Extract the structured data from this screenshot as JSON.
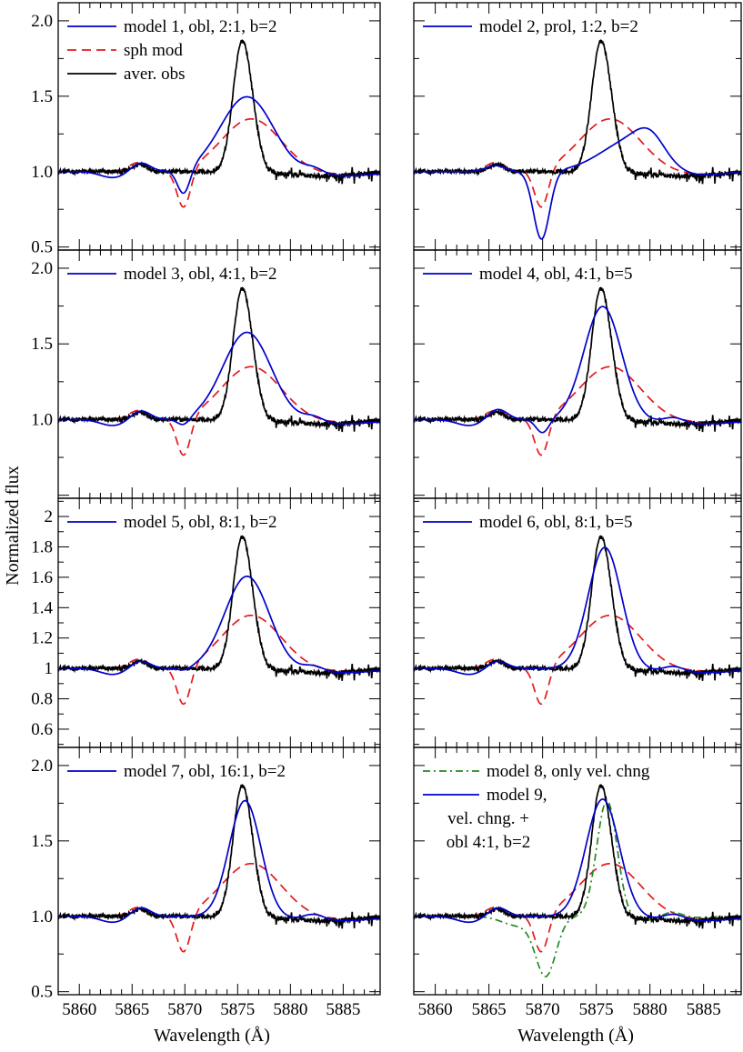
{
  "figure": {
    "ylabel": "Normalized flux",
    "xlabel": "Wavelength (Å)"
  },
  "chart_data": [
    {
      "type": "line",
      "panel": "1",
      "series": [
        {
          "key": "model",
          "name": "model 1, obl, 2:1, b=2",
          "color": "#0000cc",
          "dash": "solid",
          "peak": 1.5,
          "peak_at": 5875.9,
          "peak_width": 2.5,
          "absorption_depth": 0.17,
          "absorption_at": 5869.9,
          "hump": 0.06
        },
        {
          "key": "sph",
          "name": "sph mod",
          "color": "#e41a1c",
          "dash": "dashed"
        },
        {
          "key": "obs",
          "name": "aver. obs",
          "color": "#000000",
          "dash": "solid"
        }
      ],
      "xlim": [
        5858,
        5888.5
      ],
      "ylim": [
        0.48,
        2.12
      ],
      "yticks": [
        0.5,
        1.0,
        1.5,
        2.0
      ],
      "ytick_labels": [
        "0.5",
        "1.0",
        "1.5",
        "2.0"
      ],
      "xticks": [
        5860,
        5865,
        5870,
        5875,
        5880,
        5885
      ],
      "xtick_labels": []
    },
    {
      "type": "line",
      "panel": "2",
      "series": [
        {
          "key": "model",
          "name": "model 2, prol, 1:2, b=2",
          "color": "#0000cc",
          "dash": "solid",
          "profile": "prolate"
        },
        {
          "key": "sph",
          "name": "",
          "color": "#e41a1c",
          "dash": "dashed"
        },
        {
          "key": "obs",
          "name": "",
          "color": "#000000",
          "dash": "solid"
        }
      ],
      "xlim": [
        5858,
        5888.5
      ],
      "ylim": [
        0.48,
        2.12
      ],
      "yticks": [
        0.5,
        1.0,
        1.5,
        2.0
      ],
      "ytick_labels": [],
      "xticks": [
        5860,
        5865,
        5870,
        5875,
        5880,
        5885
      ],
      "xtick_labels": []
    },
    {
      "type": "line",
      "panel": "3",
      "series": [
        {
          "key": "model",
          "name": "model 3, obl, 4:1, b=2",
          "color": "#0000cc",
          "dash": "solid",
          "peak": 1.58,
          "peak_at": 5875.9,
          "peak_width": 2.3,
          "absorption_depth": 0.05,
          "absorption_at": 5869.9,
          "hump": 0.06
        },
        {
          "key": "sph",
          "name": "",
          "color": "#e41a1c",
          "dash": "dashed"
        },
        {
          "key": "obs",
          "name": "",
          "color": "#000000",
          "dash": "solid"
        }
      ],
      "xlim": [
        5858,
        5888.5
      ],
      "ylim": [
        0.48,
        2.12
      ],
      "yticks": [
        0.5,
        1.0,
        1.5,
        2.0
      ],
      "ytick_labels": [
        "",
        "1.0",
        "1.5",
        "2.0"
      ],
      "xticks": [
        5860,
        5865,
        5870,
        5875,
        5880,
        5885
      ],
      "xtick_labels": []
    },
    {
      "type": "line",
      "panel": "4",
      "series": [
        {
          "key": "model",
          "name": "model 4, obl, 4:1, b=5",
          "color": "#0000cc",
          "dash": "solid",
          "peak": 1.75,
          "peak_at": 5875.6,
          "peak_width": 1.75,
          "absorption_depth": 0.09,
          "absorption_at": 5870.0,
          "hump": 0.07
        },
        {
          "key": "sph",
          "name": "",
          "color": "#e41a1c",
          "dash": "dashed"
        },
        {
          "key": "obs",
          "name": "",
          "color": "#000000",
          "dash": "solid"
        }
      ],
      "xlim": [
        5858,
        5888.5
      ],
      "ylim": [
        0.48,
        2.12
      ],
      "yticks": [
        0.5,
        1.0,
        1.5,
        2.0
      ],
      "ytick_labels": [],
      "xticks": [
        5860,
        5865,
        5870,
        5875,
        5880,
        5885
      ],
      "xtick_labels": []
    },
    {
      "type": "line",
      "panel": "5",
      "series": [
        {
          "key": "model",
          "name": "model 5, obl, 8:1, b=2",
          "color": "#0000cc",
          "dash": "solid",
          "peak": 1.61,
          "peak_at": 5875.9,
          "peak_width": 2.1,
          "absorption_depth": 0.02,
          "absorption_at": 5870.0,
          "hump": 0.05
        },
        {
          "key": "sph",
          "name": "",
          "color": "#e41a1c",
          "dash": "dashed"
        },
        {
          "key": "obs",
          "name": "",
          "color": "#000000",
          "dash": "solid"
        }
      ],
      "xlim": [
        5858,
        5888.5
      ],
      "ylim": [
        0.48,
        2.12
      ],
      "yticks": [
        0.6,
        0.8,
        1.0,
        1.2,
        1.4,
        1.6,
        1.8,
        2.0
      ],
      "ytick_labels": [
        "0.6",
        "0.8",
        "1",
        "1.2",
        "1.4",
        "1.6",
        "1.8",
        "2"
      ],
      "xticks": [
        5860,
        5865,
        5870,
        5875,
        5880,
        5885
      ],
      "xtick_labels": []
    },
    {
      "type": "line",
      "panel": "6",
      "series": [
        {
          "key": "model",
          "name": "model 6, obl, 8:1, b=5",
          "color": "#0000cc",
          "dash": "solid",
          "peak": 1.8,
          "peak_at": 5875.8,
          "peak_width": 1.55,
          "absorption_depth": 0.0,
          "absorption_at": 5870.0,
          "hump": 0.05
        },
        {
          "key": "sph",
          "name": "",
          "color": "#e41a1c",
          "dash": "dashed"
        },
        {
          "key": "obs",
          "name": "",
          "color": "#000000",
          "dash": "solid"
        }
      ],
      "xlim": [
        5858,
        5888.5
      ],
      "ylim": [
        0.48,
        2.12
      ],
      "yticks": [
        0.6,
        0.8,
        1.0,
        1.2,
        1.4,
        1.6,
        1.8,
        2.0
      ],
      "ytick_labels": [],
      "xticks": [
        5860,
        5865,
        5870,
        5875,
        5880,
        5885
      ],
      "xtick_labels": []
    },
    {
      "type": "line",
      "panel": "7",
      "series": [
        {
          "key": "model",
          "name": "model 7, obl, 16:1, b=2",
          "color": "#0000cc",
          "dash": "solid",
          "peak": 1.77,
          "peak_at": 5875.7,
          "peak_width": 1.5,
          "absorption_depth": 0.0,
          "absorption_at": 5870.0,
          "hump": 0.06
        },
        {
          "key": "sph",
          "name": "",
          "color": "#e41a1c",
          "dash": "dashed"
        },
        {
          "key": "obs",
          "name": "",
          "color": "#000000",
          "dash": "solid"
        }
      ],
      "xlim": [
        5858,
        5888.5
      ],
      "ylim": [
        0.48,
        2.12
      ],
      "yticks": [
        0.5,
        1.0,
        1.5,
        2.0
      ],
      "ytick_labels": [
        "0.5",
        "1.0",
        "1.5",
        "2.0"
      ],
      "xticks": [
        5860,
        5865,
        5870,
        5875,
        5880,
        5885
      ],
      "xtick_labels": [
        "5860",
        "5865",
        "5870",
        "5875",
        "5880",
        "5885"
      ]
    },
    {
      "type": "line",
      "panel": "8",
      "series": [
        {
          "key": "vel",
          "name": "model 8, only vel. chng",
          "color": "#228b22",
          "dash": "dashdot"
        },
        {
          "key": "model",
          "name": "model 9,",
          "name_lines": [
            "vel. chng. +",
            "obl 4:1, b=2"
          ],
          "color": "#0000cc",
          "dash": "solid",
          "peak": 1.78,
          "peak_at": 5875.6,
          "peak_width": 1.55,
          "absorption_depth": 0.0,
          "absorption_at": 5870.0,
          "hump": 0.06
        },
        {
          "key": "sph",
          "name": "",
          "color": "#e41a1c",
          "dash": "dashed"
        },
        {
          "key": "obs",
          "name": "",
          "color": "#000000",
          "dash": "solid"
        }
      ],
      "xlim": [
        5858,
        5888.5
      ],
      "ylim": [
        0.48,
        2.12
      ],
      "yticks": [
        0.5,
        1.0,
        1.5,
        2.0
      ],
      "ytick_labels": [],
      "xticks": [
        5860,
        5865,
        5870,
        5875,
        5880,
        5885
      ],
      "xtick_labels": [
        "5860",
        "5865",
        "5870",
        "5875",
        "5880",
        "5885"
      ]
    }
  ]
}
